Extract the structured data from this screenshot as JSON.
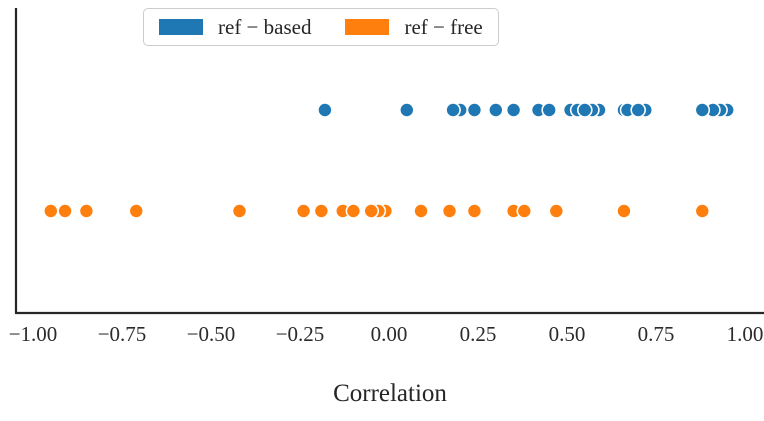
{
  "chart_data": {
    "type": "scatter",
    "title": "",
    "xlabel": "Correlation",
    "ylabel": "",
    "xlim": [
      -1.05,
      1.05
    ],
    "grid": false,
    "legend_position": "upper center",
    "x_ticks": [
      {
        "value": -1.0,
        "label": "−1.00"
      },
      {
        "value": -0.75,
        "label": "−0.75"
      },
      {
        "value": -0.5,
        "label": "−0.50"
      },
      {
        "value": -0.25,
        "label": "−0.25"
      },
      {
        "value": 0.0,
        "label": "0.00"
      },
      {
        "value": 0.25,
        "label": "0.25"
      },
      {
        "value": 0.5,
        "label": "0.50"
      },
      {
        "value": 0.75,
        "label": "0.75"
      },
      {
        "value": 1.0,
        "label": "1.00"
      }
    ],
    "series": [
      {
        "name": "ref − based",
        "color": "#1f77b4",
        "x": [
          -0.18,
          0.05,
          0.2,
          0.18,
          0.24,
          0.3,
          0.35,
          0.42,
          0.45,
          0.51,
          0.59,
          0.53,
          0.57,
          0.55,
          0.66,
          0.72,
          0.67,
          0.7,
          0.95,
          0.93,
          0.91,
          0.88
        ]
      },
      {
        "name": "ref − free",
        "color": "#ff7f0e",
        "x": [
          -0.95,
          -0.91,
          -0.85,
          -0.71,
          -0.42,
          -0.24,
          -0.19,
          -0.13,
          -0.1,
          -0.01,
          -0.03,
          -0.05,
          0.09,
          0.17,
          0.24,
          0.35,
          0.38,
          0.47,
          0.66,
          0.88
        ]
      }
    ]
  }
}
